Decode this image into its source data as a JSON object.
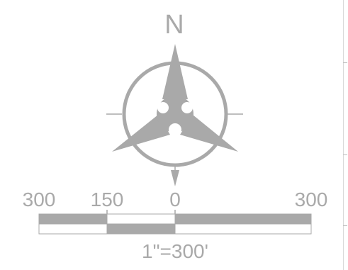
{
  "north_arrow": {
    "letter": "N"
  },
  "scale_bar": {
    "labels": [
      "300",
      "150",
      "0",
      "300"
    ],
    "scale_text": "1\"=300'"
  },
  "colors": {
    "symbol": "#a9a9a9",
    "bar_fill": "#a9a9a9",
    "bar_outline": "#a9a9a9",
    "background": "#ffffff"
  }
}
